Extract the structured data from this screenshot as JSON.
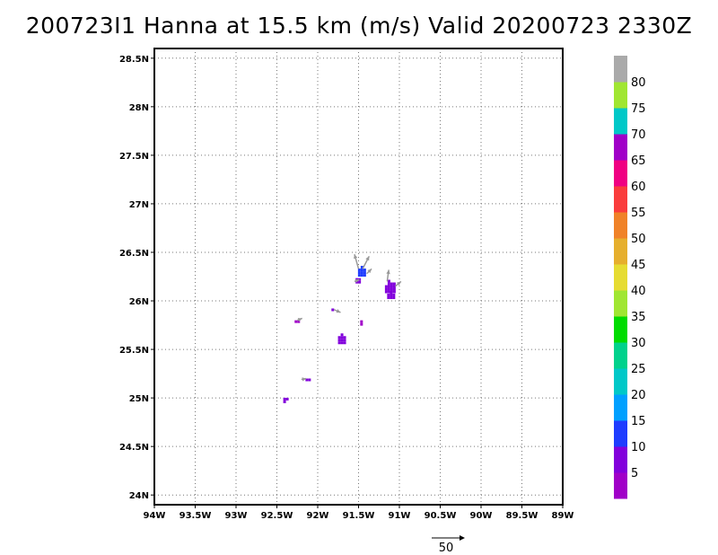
{
  "title": "200723I1 Hanna at 15.5 km (m/s) Valid 20200723 2330Z",
  "map": {
    "lon_range": [
      -94,
      -89
    ],
    "lat_range": [
      23.9,
      28.6
    ],
    "lon_ticks": [
      {
        "value": -94,
        "label": "94W"
      },
      {
        "value": -93.5,
        "label": "93.5W"
      },
      {
        "value": -93,
        "label": "93W"
      },
      {
        "value": -92.5,
        "label": "92.5W"
      },
      {
        "value": -92,
        "label": "92W"
      },
      {
        "value": -91.5,
        "label": "91.5W"
      },
      {
        "value": -91,
        "label": "91W"
      },
      {
        "value": -90.5,
        "label": "90.5W"
      },
      {
        "value": -90,
        "label": "90W"
      },
      {
        "value": -89.5,
        "label": "89.5W"
      },
      {
        "value": -89,
        "label": "89W"
      }
    ],
    "lat_ticks": [
      {
        "value": 24,
        "label": "24N"
      },
      {
        "value": 24.5,
        "label": "24.5N"
      },
      {
        "value": 25,
        "label": "25N"
      },
      {
        "value": 25.5,
        "label": "25.5N"
      },
      {
        "value": 26,
        "label": "26N"
      },
      {
        "value": 26.5,
        "label": "26.5N"
      },
      {
        "value": 27,
        "label": "27N"
      },
      {
        "value": 27.5,
        "label": "27.5N"
      },
      {
        "value": 28,
        "label": "28N"
      },
      {
        "value": 28.5,
        "label": "28.5N"
      }
    ],
    "grid": "dotted"
  },
  "colorbar": {
    "labels": [
      "5",
      "10",
      "15",
      "20",
      "25",
      "30",
      "35",
      "40",
      "45",
      "50",
      "55",
      "60",
      "65",
      "70",
      "75",
      "80"
    ],
    "colors": [
      "#a000c8",
      "#8200dc",
      "#1e3cff",
      "#00a0ff",
      "#00c8c8",
      "#00d28c",
      "#00dc00",
      "#a0e632",
      "#e6dc32",
      "#e6af2d",
      "#f08228",
      "#fa3c3c",
      "#f00082",
      "#a000c8",
      "#00c8c8",
      "#a0e632",
      "#aaaaaa"
    ]
  },
  "reference_vector": {
    "label": "50"
  },
  "echoes": [
    {
      "lon": -91.48,
      "lat": 26.31,
      "r": 0.06,
      "color": "#1e3cff"
    },
    {
      "lon": -91.52,
      "lat": 26.22,
      "r": 0.05,
      "color": "#8200dc"
    },
    {
      "lon": -91.13,
      "lat": 26.15,
      "r": 0.08,
      "color": "#8200dc"
    },
    {
      "lon": -91.1,
      "lat": 26.06,
      "r": 0.05,
      "color": "#8200dc"
    },
    {
      "lon": -91.83,
      "lat": 25.92,
      "r": 0.035,
      "color": "#8200dc"
    },
    {
      "lon": -91.48,
      "lat": 25.8,
      "r": 0.02,
      "color": "#a000c8"
    },
    {
      "lon": -91.72,
      "lat": 25.61,
      "r": 0.065,
      "color": "#8200dc"
    },
    {
      "lon": -92.15,
      "lat": 25.2,
      "r": 0.025,
      "color": "#8200dc"
    },
    {
      "lon": -92.42,
      "lat": 25.0,
      "r": 0.035,
      "color": "#8200dc"
    },
    {
      "lon": -92.25,
      "lat": 25.8,
      "r": 0.015,
      "color": "#a000c8"
    }
  ],
  "vectors": [
    {
      "lon": -91.5,
      "lat": 26.33,
      "dlon": -0.05,
      "dlat": 0.15
    },
    {
      "lon": -91.45,
      "lat": 26.33,
      "dlon": 0.08,
      "dlat": 0.13
    },
    {
      "lon": -91.4,
      "lat": 26.28,
      "dlon": 0.06,
      "dlat": 0.05
    },
    {
      "lon": -91.15,
      "lat": 26.2,
      "dlon": 0.02,
      "dlat": 0.12
    },
    {
      "lon": -91.05,
      "lat": 26.15,
      "dlon": 0.07,
      "dlat": 0.05
    },
    {
      "lon": -91.55,
      "lat": 26.2,
      "dlon": 0.06,
      "dlat": 0.02
    },
    {
      "lon": -92.25,
      "lat": 25.8,
      "dlon": 0.06,
      "dlat": 0.02
    },
    {
      "lon": -92.2,
      "lat": 25.19,
      "dlon": 0.06,
      "dlat": 0.01
    },
    {
      "lon": -91.8,
      "lat": 25.91,
      "dlon": 0.08,
      "dlat": -0.03
    }
  ]
}
